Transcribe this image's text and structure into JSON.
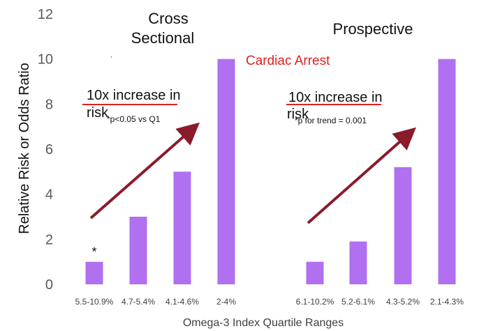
{
  "chart_data": {
    "type": "bar",
    "ylabel": "Relative Risk or Odds Ratio",
    "xlabel": "Omega-3 Index Quartile Ranges",
    "ylim": [
      0,
      12
    ],
    "yticks": [
      0,
      2,
      4,
      6,
      8,
      10,
      12
    ],
    "grid": false,
    "bar_color": "#b070f0",
    "arrow_color": "#8b1a2b",
    "underline_color": "#e02020",
    "highlight": {
      "text": "Cardiac Arrest",
      "color": "#e02020"
    },
    "panels": [
      {
        "title_line1": "Cross",
        "title_line2": "Sectional",
        "categories": [
          "5.5-10.9%",
          "4.7-5.4%",
          "4.1-4.6%",
          "2-4%"
        ],
        "values": [
          1,
          3,
          5,
          10
        ],
        "marker": "*",
        "marker_category": "5.5-10.9%",
        "annotation_line1": "10x increase in",
        "annotation_line2": "risk",
        "footnote": "*p<0.05 vs Q1"
      },
      {
        "title_line1": "Prospective",
        "categories": [
          "6.1-10.2%",
          "5.2-6.1%",
          "4.3-5.2%",
          "2.1-4.3%"
        ],
        "values": [
          1,
          1.9,
          5.2,
          10
        ],
        "annotation_line1": "10x increase in",
        "annotation_line2": "risk",
        "footnote": "*p for trend = 0.001"
      }
    ]
  }
}
